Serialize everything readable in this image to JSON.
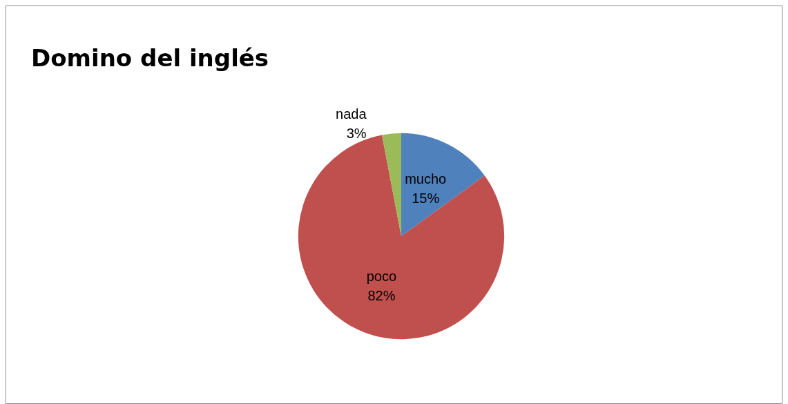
{
  "chart_data": {
    "type": "pie",
    "title": "Domino del inglés",
    "categories": [
      "mucho",
      "poco",
      "nada"
    ],
    "values": [
      15,
      82,
      3
    ],
    "colors": [
      "#4f81bd",
      "#c0504d",
      "#9bbb59"
    ],
    "value_labels": [
      "15%",
      "82%",
      "3%"
    ],
    "legend": false
  }
}
